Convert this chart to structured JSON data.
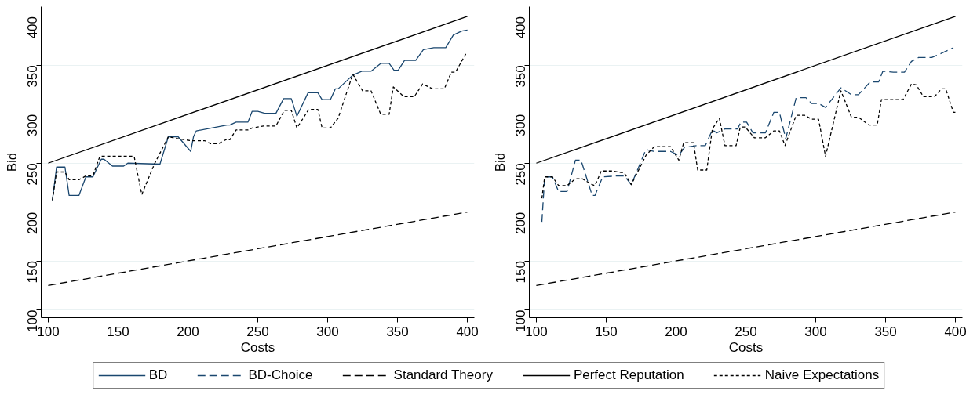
{
  "chart_data": [
    {
      "type": "line",
      "xlabel": "Costs",
      "ylabel": "Bid",
      "xlim": [
        95,
        405
      ],
      "ylim": [
        92,
        410
      ],
      "xticks": [
        100,
        150,
        200,
        250,
        300,
        350,
        400
      ],
      "yticks": [
        100,
        150,
        200,
        250,
        300,
        350,
        400
      ],
      "grid": "y",
      "legend": "bottom",
      "marker": "none",
      "series": [
        {
          "name": "BD",
          "color": "#1a476f",
          "line_style": "solid",
          "x": [
            103,
            106,
            112,
            115,
            122,
            127,
            132,
            138,
            140,
            146,
            154,
            157,
            180,
            186,
            193,
            202,
            204,
            206,
            228,
            230,
            234.5,
            243,
            246,
            250,
            255,
            263,
            268.5,
            274,
            278,
            286,
            293,
            296,
            302,
            305.5,
            307.5,
            318,
            324.5,
            331,
            338,
            344,
            347.5,
            350.5,
            355,
            363,
            368.5,
            376,
            384.5,
            390,
            396,
            400
          ],
          "values": [
            212,
            246,
            246,
            217,
            217,
            236,
            236,
            254,
            254,
            247,
            247,
            250,
            249,
            277,
            277,
            262,
            277,
            283,
            289,
            289,
            292,
            292,
            303,
            303,
            301,
            301,
            316,
            316,
            298,
            322,
            322,
            315,
            315,
            326,
            326,
            340,
            344,
            344,
            352,
            352,
            345,
            345,
            355,
            355,
            366,
            368,
            368,
            381,
            385,
            386
          ]
        },
        {
          "name": "Standard Theory",
          "color": "#000000",
          "line_style": "dashed",
          "x": [
            100,
            400
          ],
          "values": [
            125,
            200
          ]
        },
        {
          "name": "Perfect Reputation",
          "color": "#000000",
          "line_style": "solid",
          "x": [
            100,
            400
          ],
          "values": [
            250,
            400
          ]
        },
        {
          "name": "Naive Expectations",
          "color": "#000000",
          "line_style": "dotted",
          "x": [
            103,
            106,
            112,
            115,
            122,
            127,
            132,
            137,
            155,
            161.5,
            167,
            176,
            186,
            193,
            202,
            212,
            216,
            222,
            228.5,
            230,
            234.5,
            243,
            246,
            254,
            263,
            269,
            274,
            278,
            286.5,
            293,
            296,
            302,
            307.5,
            318,
            325,
            331,
            338,
            344,
            347,
            354.5,
            362,
            368,
            375,
            383.5,
            388.5,
            391.5,
            399
          ],
          "values": [
            212,
            241,
            241,
            233,
            233,
            237,
            237,
            257,
            257,
            257,
            218,
            249,
            277,
            275,
            273,
            273,
            270,
            270,
            275,
            274,
            284,
            284,
            286,
            288,
            288,
            304,
            304,
            286,
            305,
            305,
            286,
            286,
            296,
            341,
            324,
            324,
            300,
            300,
            328,
            318,
            318,
            331,
            326,
            326,
            343,
            343,
            362
          ]
        }
      ]
    },
    {
      "type": "line",
      "xlabel": "Costs",
      "ylabel": "Bid",
      "xlim": [
        95,
        405
      ],
      "ylim": [
        92,
        410
      ],
      "xticks": [
        100,
        150,
        200,
        250,
        300,
        350,
        400
      ],
      "yticks": [
        100,
        150,
        200,
        250,
        300,
        350,
        400
      ],
      "grid": "y",
      "legend": "bottom",
      "marker": "none",
      "series": [
        {
          "name": "BD-Choice",
          "color": "#1a476f",
          "line_style": "dashed",
          "x": [
            104,
            106,
            111.5,
            116,
            122,
            128,
            132,
            140,
            142,
            147.5,
            159,
            163,
            168,
            178.5,
            184.5,
            196,
            202,
            206,
            214.5,
            221,
            226,
            229,
            235,
            244,
            246.5,
            250.5,
            255,
            264,
            270,
            274,
            278.5,
            286,
            293,
            297,
            302,
            307,
            318,
            325.5,
            330.5,
            339,
            345,
            348,
            355.5,
            363.5,
            368.5,
            373.5,
            383,
            389.5,
            398.5
          ],
          "values": [
            190,
            236,
            236,
            221,
            221,
            253,
            253,
            217,
            217,
            236,
            237,
            237,
            228,
            264,
            262,
            262,
            258,
            266,
            268,
            268,
            284,
            281,
            285,
            285,
            292,
            292,
            281,
            281,
            302,
            302,
            275,
            317,
            317,
            311,
            311,
            307,
            327,
            320,
            320,
            333,
            333,
            344,
            343,
            343,
            354,
            358,
            358,
            362,
            368
          ]
        },
        {
          "color": "#000000",
          "line_style": "dashed",
          "x": [
            100,
            400
          ],
          "values": [
            125,
            200
          ]
        },
        {
          "color": "#000000",
          "line_style": "solid",
          "x": [
            100,
            400
          ],
          "values": [
            250,
            400
          ]
        },
        {
          "color": "#000000",
          "line_style": "dotted",
          "x": [
            104,
            106,
            111.5,
            116,
            122,
            128,
            133,
            140,
            142,
            146.5,
            154,
            163,
            168,
            178.5,
            184.5,
            196,
            202,
            205.5,
            212.5,
            215.5,
            222,
            226,
            231,
            235,
            243,
            246,
            249.5,
            256,
            264,
            270,
            274,
            278,
            286,
            292,
            297,
            302,
            307,
            318,
            325.5,
            330.5,
            338,
            344,
            347,
            362.5,
            368.5,
            372,
            377,
            385,
            390,
            393,
            398.5,
            400.5
          ],
          "values": [
            214,
            236,
            236,
            227,
            227,
            234,
            234,
            228,
            227,
            242,
            242,
            240,
            228,
            258,
            267,
            267,
            253,
            271,
            271,
            243,
            243,
            285,
            296,
            268,
            268,
            287,
            287,
            276,
            276,
            283,
            283,
            268,
            299,
            299,
            295,
            295,
            257,
            324,
            297,
            297,
            289,
            289,
            315,
            315,
            331,
            330,
            318,
            318,
            326,
            326,
            302,
            302
          ]
        }
      ]
    }
  ]
}
